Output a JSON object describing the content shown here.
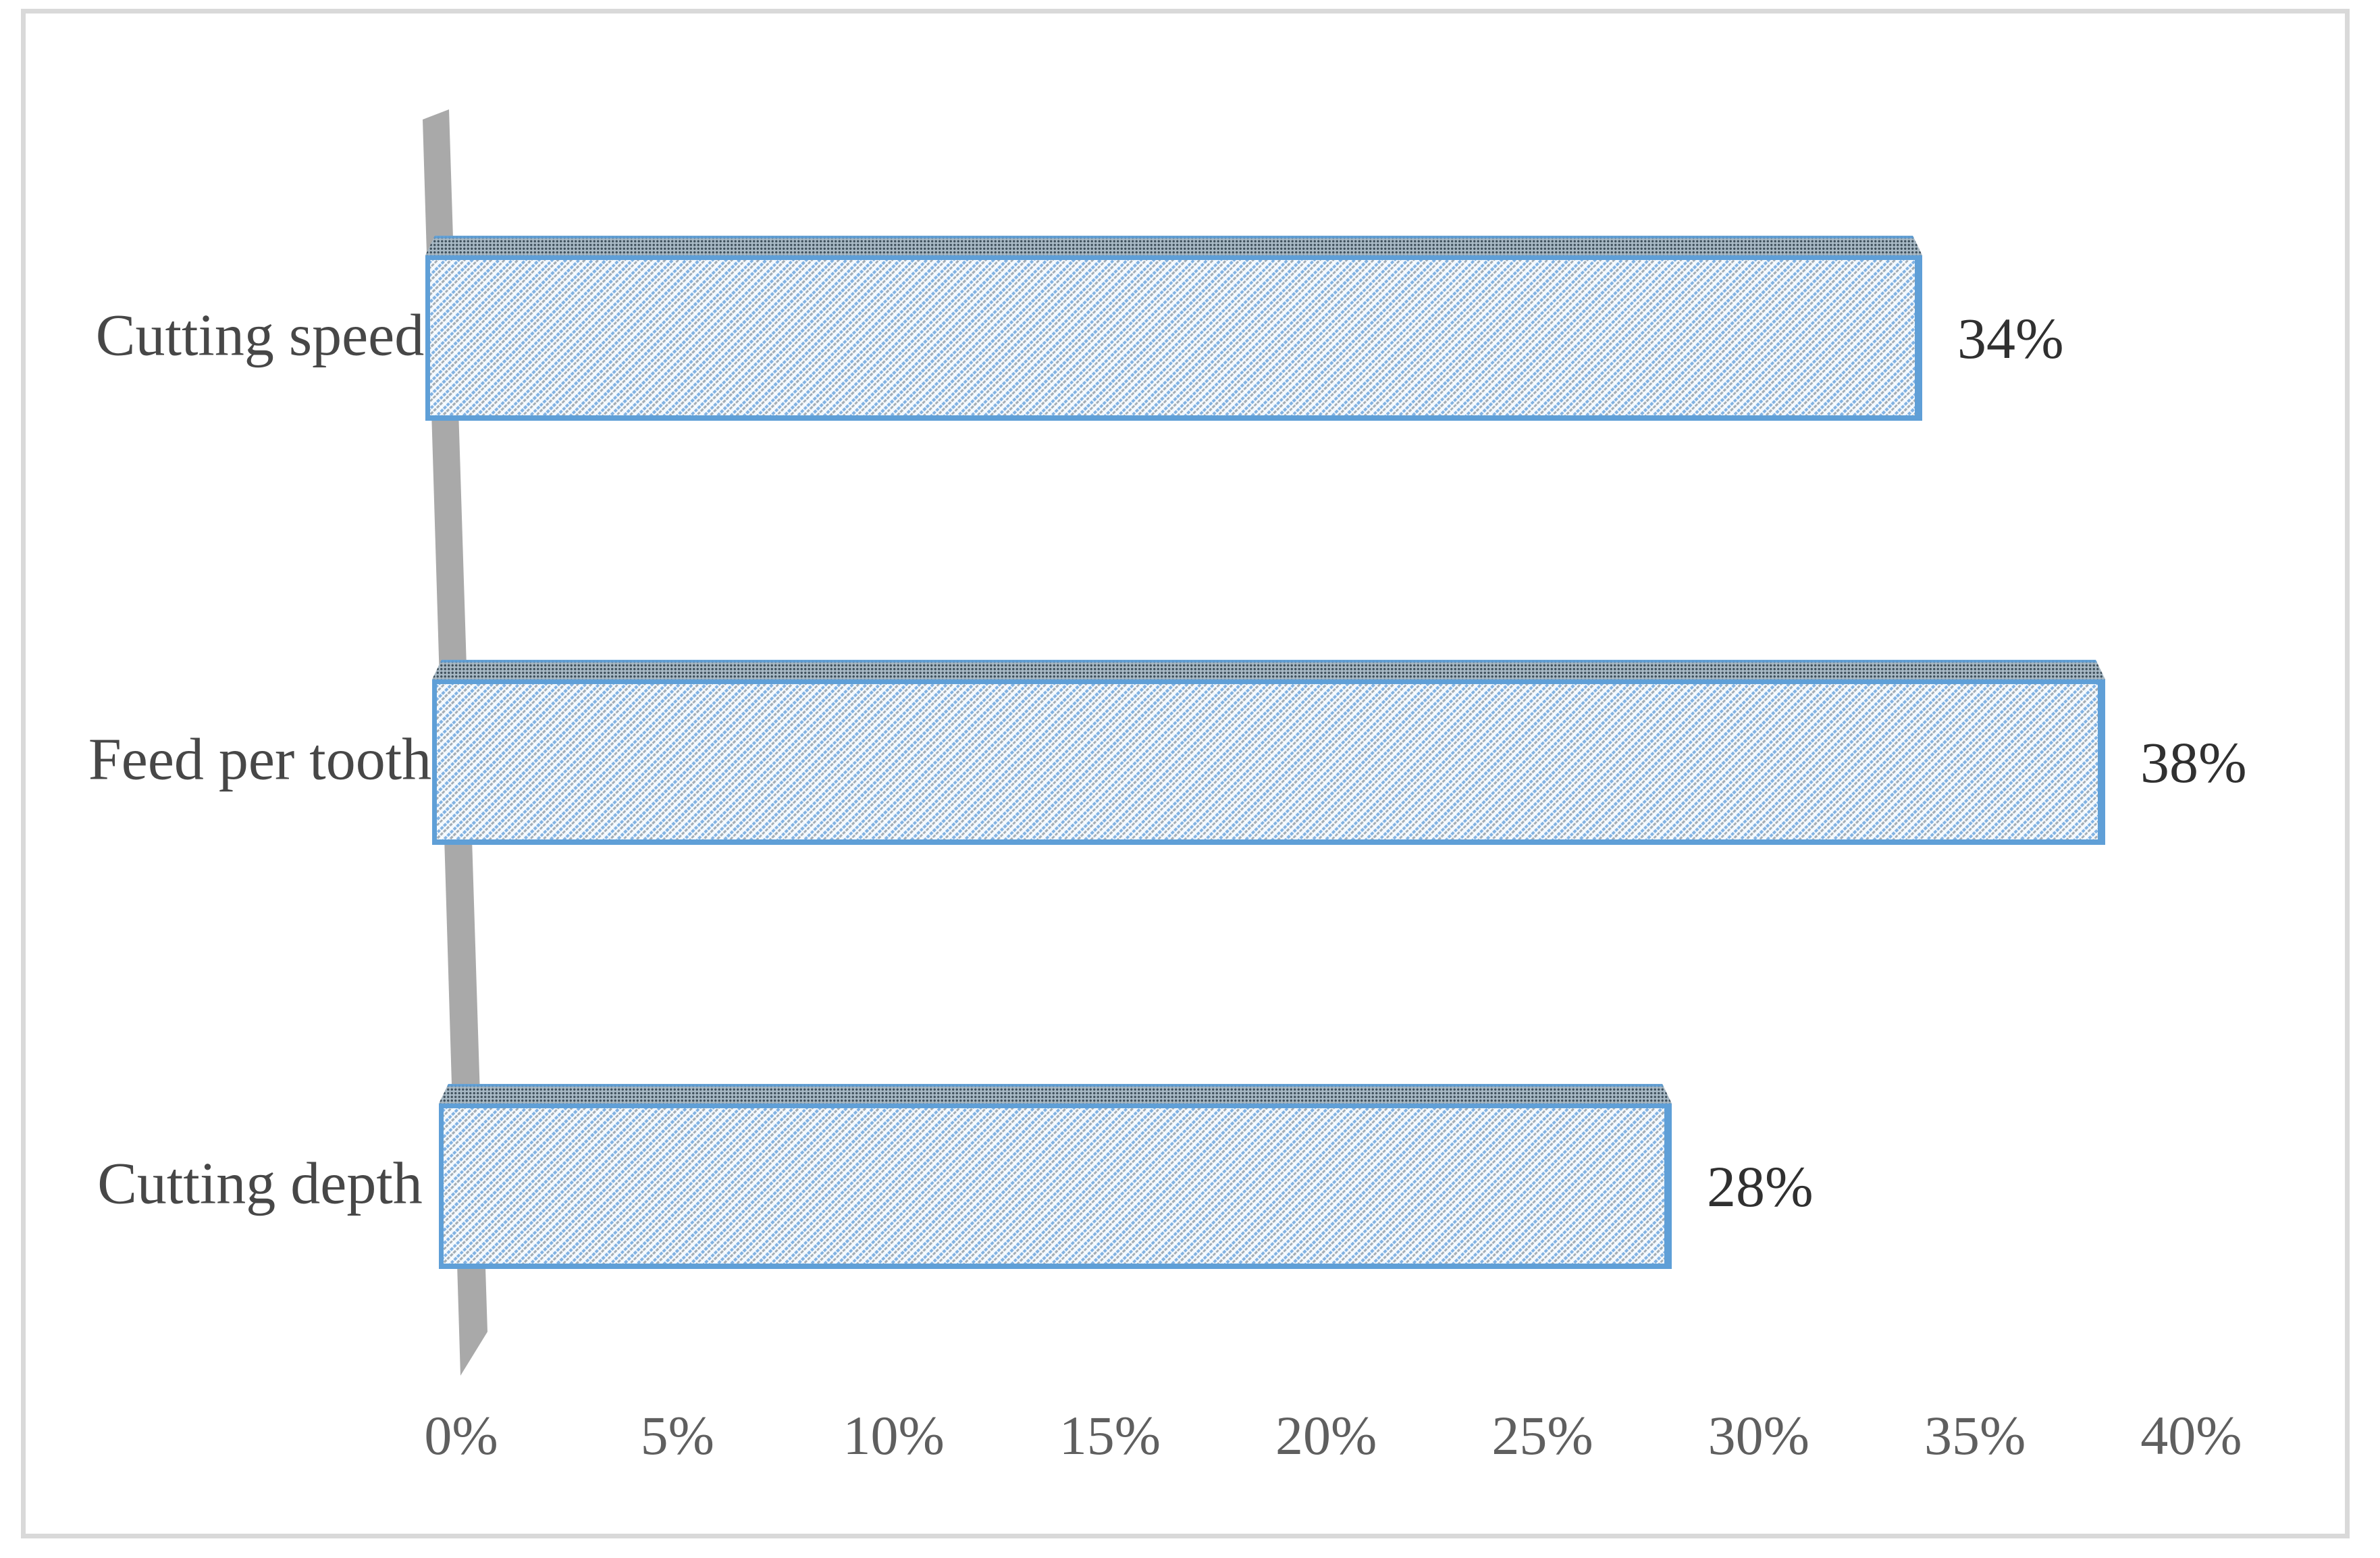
{
  "figure": {
    "kind": "3d-horizontal-bar-chart-figure"
  },
  "chart_data": {
    "type": "bar",
    "orientation": "horizontal",
    "style": "3d-cuboid-bars-with-hatch-pattern-fill",
    "title": "",
    "xlabel": "",
    "ylabel": "",
    "categories": [
      "Cutting speed",
      "Feed per tooth",
      "Cutting depth"
    ],
    "values": [
      34,
      38,
      28
    ],
    "data_labels": [
      "34%",
      "38%",
      "28%"
    ],
    "xlim": [
      0,
      40
    ],
    "x_tick_step": 5,
    "x_tick_labels": [
      "0%",
      "5%",
      "10%",
      "15%",
      "20%",
      "25%",
      "30%",
      "35%",
      "40%"
    ],
    "gridlines": false,
    "legend": false,
    "colors": {
      "bar_border": "#5f9fd7",
      "bar_fill_base": "#f0f7fd",
      "bar_hatch_blue": "#6ea6dd",
      "bar_hatch_gray": "#64707a",
      "bar_top_face": "#a7b8c4",
      "bar_top_dots": "#3f505c",
      "wall": "#a9a9a9",
      "category_label": "#474747",
      "value_label": "#303030",
      "tick_label": "#5f5f5f",
      "frame_border": "#d9d9d9",
      "background": "#ffffff"
    }
  }
}
